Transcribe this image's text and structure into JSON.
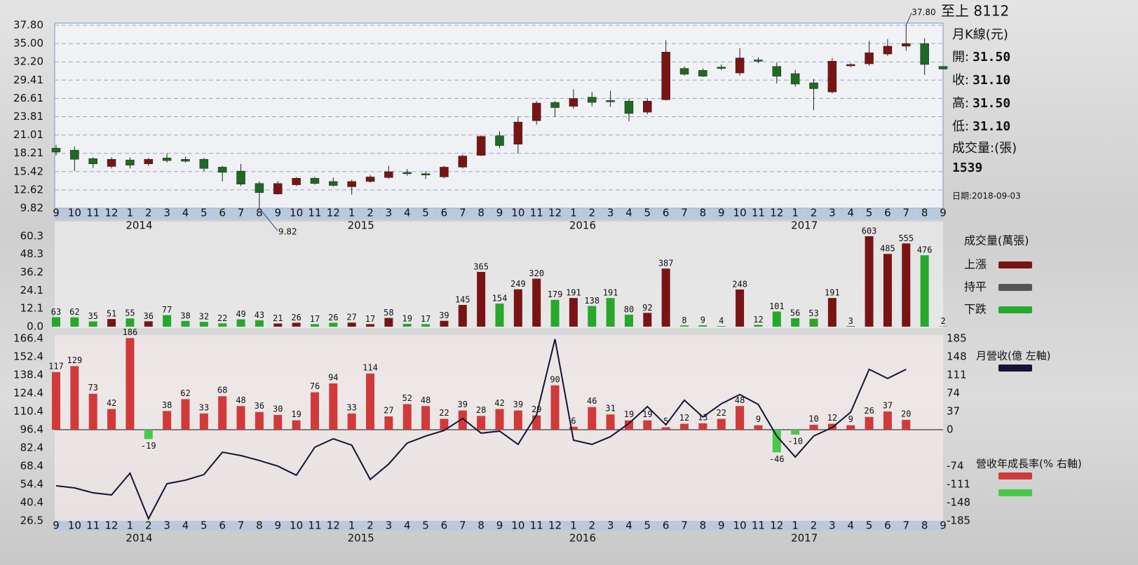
{
  "chart_data": [
    {
      "type": "candlestick",
      "title": "至上 8112",
      "subtitle": "月K線(元)",
      "info": [
        {
          "label": "開:",
          "value": "31.50"
        },
        {
          "label": "收:",
          "value": "31.10"
        },
        {
          "label": "高:",
          "value": "31.50"
        },
        {
          "label": "低:",
          "value": "31.10"
        }
      ],
      "volume_label": "成交量:(張)",
      "volume": "1539",
      "date": "日期:2018-09-03",
      "categories": [
        "9",
        "10",
        "11",
        "12",
        "1",
        "2",
        "3",
        "4",
        "5",
        "6",
        "7",
        "8",
        "9",
        "10",
        "11",
        "12",
        "1",
        "2",
        "3",
        "4",
        "5",
        "6",
        "7",
        "8",
        "9",
        "10",
        "11",
        "12",
        "1",
        "2",
        "3",
        "4",
        "5",
        "6",
        "7",
        "8",
        "9",
        "10",
        "11",
        "12",
        "1",
        "2",
        "3",
        "4",
        "5",
        "6",
        "7",
        "8",
        "9"
      ],
      "years": [
        "2014",
        "2015",
        "2016",
        "2017"
      ],
      "open": [
        19.0,
        18.7,
        17.4,
        16.2,
        17.2,
        16.6,
        17.5,
        17.3,
        17.3,
        16.1,
        15.5,
        13.6,
        12.0,
        13.4,
        14.4,
        13.9,
        13.1,
        13.9,
        14.5,
        15.3,
        15.1,
        14.6,
        16.1,
        17.9,
        20.9,
        19.6,
        23.2,
        26.0,
        25.4,
        26.8,
        26.3,
        26.2,
        24.5,
        26.4,
        31.2,
        30.9,
        31.4,
        30.5,
        32.5,
        31.5,
        30.4,
        29.0,
        27.6,
        31.6,
        31.9,
        33.4,
        34.6,
        35.0,
        31.5
      ],
      "high": [
        19.5,
        19.25,
        17.6,
        17.6,
        17.6,
        17.5,
        18.2,
        17.7,
        17.5,
        16.3,
        16.6,
        13.9,
        14.0,
        14.6,
        14.6,
        14.5,
        14.2,
        14.9,
        16.3,
        15.8,
        15.5,
        16.3,
        18.0,
        21.0,
        21.6,
        23.8,
        26.2,
        26.2,
        28.0,
        27.6,
        27.8,
        26.6,
        26.6,
        35.5,
        31.5,
        31.2,
        31.8,
        34.3,
        32.9,
        32.1,
        31.0,
        29.6,
        32.8,
        32.0,
        35.4,
        35.7,
        37.8,
        35.8,
        31.5
      ],
      "low": [
        17.9,
        15.5,
        16.0,
        15.9,
        15.9,
        16.3,
        16.8,
        16.8,
        15.5,
        13.9,
        13.2,
        9.82,
        11.9,
        13.2,
        13.4,
        13.1,
        11.9,
        13.7,
        14.3,
        14.8,
        14.3,
        14.4,
        15.9,
        17.8,
        19.0,
        18.2,
        22.6,
        23.8,
        25.0,
        25.4,
        25.3,
        23.1,
        24.2,
        26.3,
        30.1,
        29.9,
        30.9,
        30.1,
        32.0,
        28.9,
        28.4,
        24.8,
        27.4,
        31.4,
        31.6,
        33.1,
        33.9,
        30.2,
        31.1
      ],
      "close": [
        18.4,
        17.3,
        16.6,
        17.3,
        16.4,
        17.3,
        17.1,
        17.0,
        15.9,
        15.3,
        13.5,
        12.2,
        13.6,
        14.4,
        13.6,
        13.3,
        13.9,
        14.6,
        15.4,
        15.2,
        14.9,
        16.1,
        17.8,
        20.8,
        19.4,
        23.0,
        25.9,
        25.2,
        26.6,
        26.0,
        26.2,
        24.3,
        26.2,
        33.7,
        30.3,
        30.0,
        31.3,
        32.8,
        32.3,
        30.0,
        28.8,
        28.1,
        32.3,
        31.8,
        33.6,
        34.6,
        35.0,
        31.8,
        31.1
      ],
      "high_value_labels": [
        null,
        null,
        null,
        null,
        null,
        null,
        null,
        null,
        null,
        null,
        null,
        null,
        null,
        null,
        null,
        null,
        null,
        null,
        null,
        null,
        null,
        null,
        null,
        null,
        null,
        null,
        null,
        null,
        null,
        null,
        null,
        null,
        null,
        null,
        null,
        null,
        null,
        null,
        null,
        null,
        null,
        null,
        null,
        null,
        null,
        null,
        "37.80",
        null,
        null
      ],
      "low_value_labels": [
        null,
        null,
        null,
        null,
        null,
        null,
        null,
        null,
        null,
        null,
        null,
        "9.82",
        null,
        null,
        null,
        null,
        null,
        null,
        null,
        null,
        null,
        null,
        null,
        null,
        null,
        null,
        null,
        null,
        null,
        null,
        null,
        null,
        null,
        null,
        null,
        null,
        null,
        null,
        null,
        null,
        null,
        null,
        null,
        null,
        null,
        null,
        null,
        null,
        null
      ],
      "up_color": "#7a1414",
      "down_color": "#1e6a22",
      "ylim": [
        9.82,
        37.8
      ],
      "yticks": [
        {
          "value": 37.8,
          "label": "37.80"
        },
        {
          "value": 35,
          "label": "35.00"
        },
        {
          "value": 32.2,
          "label": "32.20"
        },
        29.41,
        26.61,
        23.81,
        21.01,
        18.21,
        15.42,
        12.62,
        9.82
      ],
      "grid": true
    },
    {
      "type": "bar",
      "values": [
        6.3,
        6.2,
        3.5,
        5.1,
        5.5,
        3.6,
        7.7,
        3.8,
        3.2,
        2.2,
        4.9,
        4.3,
        2.1,
        2.6,
        1.7,
        2.6,
        2.7,
        1.7,
        5.8,
        1.9,
        1.7,
        3.9,
        14.5,
        36.5,
        15.4,
        24.9,
        32.0,
        17.9,
        19.1,
        13.8,
        19.1,
        8.0,
        9.2,
        38.7,
        0.8,
        0.9,
        0.4,
        24.8,
        1.2,
        10.1,
        5.6,
        5.3,
        19.1,
        0.3,
        60.3,
        48.5,
        55.5,
        47.6,
        0.2
      ],
      "value_labels": [
        "63",
        "62",
        "35",
        "51",
        "55",
        "36",
        "77",
        "38",
        "32",
        "22",
        "49",
        "43",
        "21",
        "26",
        "17",
        "26",
        "27",
        "17",
        "58",
        "19",
        "17",
        "39",
        "145",
        "365",
        "154",
        "249",
        "320",
        "179",
        "191",
        "138",
        "191",
        "80",
        "92",
        "387",
        "8",
        "9",
        "4",
        "248",
        "12",
        "101",
        "56",
        "53",
        "191",
        "3",
        "603",
        "485",
        "555",
        "476",
        "2"
      ],
      "ylim": [
        0,
        60.3
      ],
      "yticks": [
        {
          "value": 0,
          "label": "0.0"
        },
        12.1,
        24.1,
        36.2,
        48.3,
        60.3
      ],
      "legend_title": "成交量(萬張)",
      "legend": [
        {
          "name": "上漲",
          "color": "#7a1414"
        },
        {
          "name": "持平",
          "color": "#555555"
        },
        {
          "name": "下跌",
          "color": "#27a82a"
        }
      ]
    },
    {
      "type": "bar_line",
      "categories": [
        "9",
        "10",
        "11",
        "12",
        "1",
        "2",
        "3",
        "4",
        "5",
        "6",
        "7",
        "8",
        "9",
        "10",
        "11",
        "12",
        "1",
        "2",
        "3",
        "4",
        "5",
        "6",
        "7",
        "8",
        "9",
        "10",
        "11",
        "12",
        "1",
        "2",
        "3",
        "4",
        "5",
        "6",
        "7",
        "8",
        "9",
        "10",
        "11",
        "12",
        "1",
        "2",
        "3",
        "4",
        "5",
        "6",
        "7",
        "8",
        "9"
      ],
      "years": [
        "2014",
        "2015",
        "2016",
        "2017"
      ],
      "series": [
        {
          "name": "月營收(億 左軸)",
          "type": "line",
          "color": "#141433",
          "values": [
            53.4,
            51.8,
            48.0,
            46.4,
            63.1,
            28.1,
            55.0,
            57.7,
            62.0,
            79.2,
            76.6,
            72.8,
            68.5,
            61.5,
            83.0,
            89.5,
            84.6,
            58.3,
            70.1,
            86.2,
            91.6,
            95.9,
            105.1,
            93.8,
            95.4,
            85.2,
            107.8,
            166,
            88.4,
            85.2,
            91.1,
            101.3,
            114.2,
            100.2,
            119.1,
            106.2,
            116.4,
            123.4,
            115.8,
            91.6,
            75.5,
            91.6,
            98.1,
            109.9,
            142.8,
            135.8,
            142.8,
            null,
            null
          ]
        },
        {
          "name": "營收年成長率(% 右軸)",
          "type": "bar",
          "axis": "y2",
          "color": "#d03a3a",
          "negative_color": "#49c94a",
          "values": [
            117,
            129,
            73,
            42,
            186,
            -19,
            38,
            62,
            33,
            68,
            48,
            36,
            30,
            19,
            76,
            94,
            33,
            114,
            27,
            52,
            48,
            22,
            39,
            28,
            42,
            39,
            29,
            90,
            6,
            46,
            31,
            19,
            19,
            5,
            12,
            13,
            22,
            48,
            9,
            -46,
            -10,
            10,
            12,
            9,
            26,
            37,
            20,
            null,
            null
          ]
        }
      ],
      "ylim": [
        26.5,
        166.4
      ],
      "yticks": [
        166.4,
        152.4,
        138.4,
        124.4,
        110.4,
        96.4,
        82.4,
        68.4,
        54.4,
        40.4,
        26.5
      ],
      "y2lim": [
        -185,
        185
      ],
      "y2ticks": [
        185,
        148,
        111,
        74,
        37,
        0,
        -74,
        -111,
        -148,
        -185
      ]
    }
  ]
}
